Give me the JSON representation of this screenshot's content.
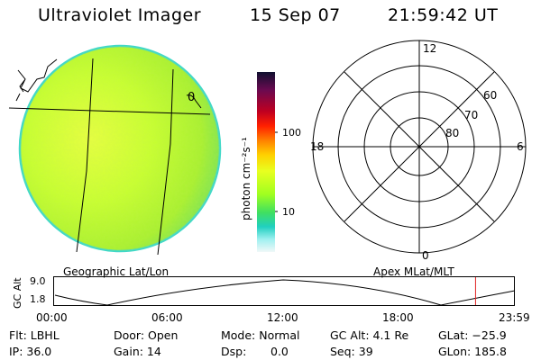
{
  "header": {
    "title": "Ultraviolet Imager",
    "date": "15 Sep 07",
    "time": "21:59:42 UT"
  },
  "geo_panel": {
    "label": "Geographic Lat/Lon",
    "marker": "0"
  },
  "colorbar": {
    "unit_label": "photon cm⁻²s⁻¹",
    "ticks": [
      "100",
      "10"
    ],
    "colors": [
      "#101030",
      "#6a0a50",
      "#a00020",
      "#e00010",
      "#ff4000",
      "#ffa000",
      "#f0ff20",
      "#a0ff20",
      "#20e080",
      "#20d0d0",
      "#a0f0f0",
      "#e8f8f8"
    ]
  },
  "apex_panel": {
    "label": "Apex MLat/MLT",
    "mlt_labels": {
      "top": "12",
      "bottom": "0",
      "left": "18",
      "right": "6"
    },
    "mlat_labels": [
      "60",
      "70",
      "80"
    ]
  },
  "timeline": {
    "ylabel": "GC Alt",
    "yticks": [
      "9.0",
      "1.8"
    ],
    "xticks": [
      "00:00",
      "06:00",
      "12:00",
      "18:00",
      "23:59"
    ],
    "current_time_fraction": 0.9165,
    "line_color": "#e02020"
  },
  "status": {
    "flt": "Flt: LBHL",
    "ip": "IP: 36.0",
    "door": "Door: Open",
    "gain": "Gain: 14",
    "mode": "Mode: Normal",
    "dsp_label": "Dsp:",
    "dsp_value": "0.0",
    "gcalt": "GC Alt: 4.1 Re",
    "seq": "Seq: 39",
    "glat": "GLat: −25.9",
    "glon": "GLon: 185.8"
  }
}
